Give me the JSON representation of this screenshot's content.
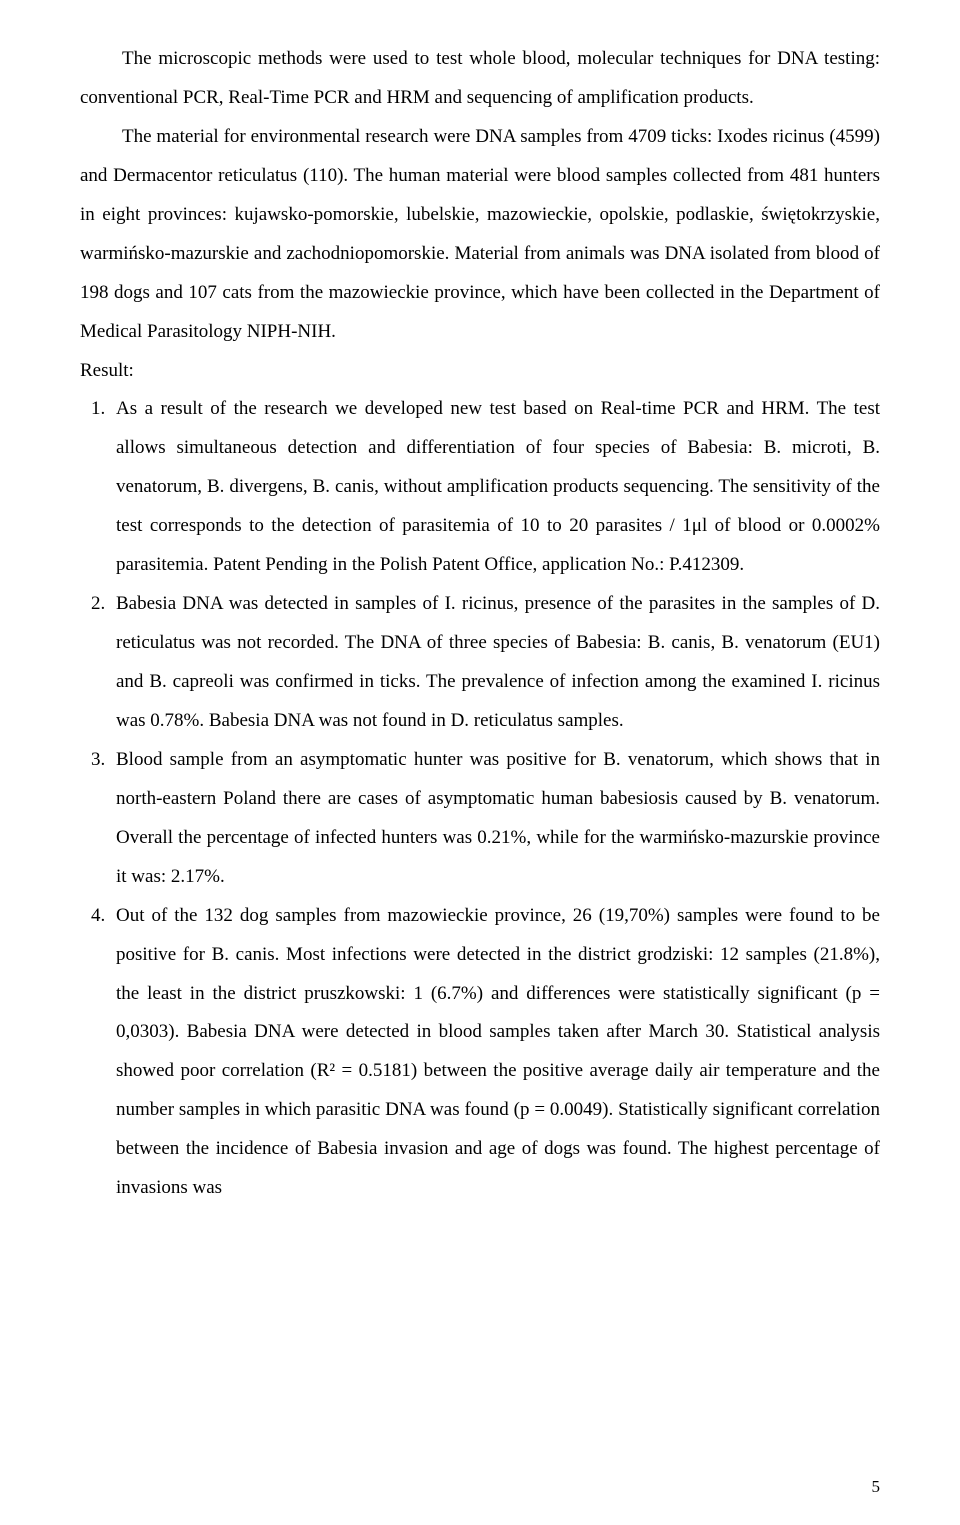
{
  "para1": "The microscopic methods were used to test whole blood, molecular techniques for DNA testing: conventional PCR, Real-Time PCR and HRM and sequencing of amplification products.",
  "para2": "The material for environmental research were DNA samples from 4709 ticks: Ixodes ricinus (4599) and Dermacentor reticulatus (110). The human material were blood samples collected from 481 hunters in eight provinces: kujawsko-pomorskie, lubelskie, mazowieckie, opolskie, podlaskie, świętokrzyskie, warmińsko-mazurskie and zachodniopomorskie. Material from animals was DNA isolated from blood of 198 dogs and 107 cats from the mazowieckie province, which have been collected in the Department of Medical Parasitology NIPH-NIH.",
  "resultLabel": "Result:",
  "items": [
    "As a result of the research we developed new test based on Real-time PCR and HRM. The test allows simultaneous detection and differentiation of four species of Babesia: B. microti, B. venatorum, B. divergens, B. canis, without amplification products sequencing. The sensitivity of the test corresponds to the detection of parasitemia of 10 to 20 parasites / 1μl of blood or 0.0002% parasitemia. Patent Pending in the Polish Patent Office, application No.: P.412309.",
    "Babesia DNA was detected in samples of I. ricinus, presence of the parasites in the samples of D. reticulatus was not recorded. The DNA of three species of Babesia: B. canis, B. venatorum (EU1) and B. capreoli was confirmed in ticks. The prevalence of infection among the examined I. ricinus was 0.78%. Babesia DNA was not found in D. reticulatus samples.",
    "Blood sample from an asymptomatic hunter was positive for B. venatorum, which shows that in north-eastern Poland there are cases of asymptomatic human babesiosis caused by B. venatorum. Overall the percentage of infected hunters was 0.21%, while for the warmińsko-mazurskie province it was: 2.17%.",
    "Out of the 132 dog samples from mazowieckie province, 26 (19,70%) samples were found to be positive for B. canis. Most infections were detected in the district grodziski: 12 samples (21.8%), the least in the district pruszkowski: 1 (6.7%) and differences were statistically significant (p = 0,0303). Babesia DNA were detected in blood samples taken after March 30. Statistical analysis showed poor correlation (R² = 0.5181) between the positive average daily air temperature and the number samples in which parasitic DNA was found (p = 0.0049). Statistically significant correlation between the incidence of Babesia invasion and age of dogs was found. The highest percentage of invasions was"
  ],
  "pageNumber": "5"
}
